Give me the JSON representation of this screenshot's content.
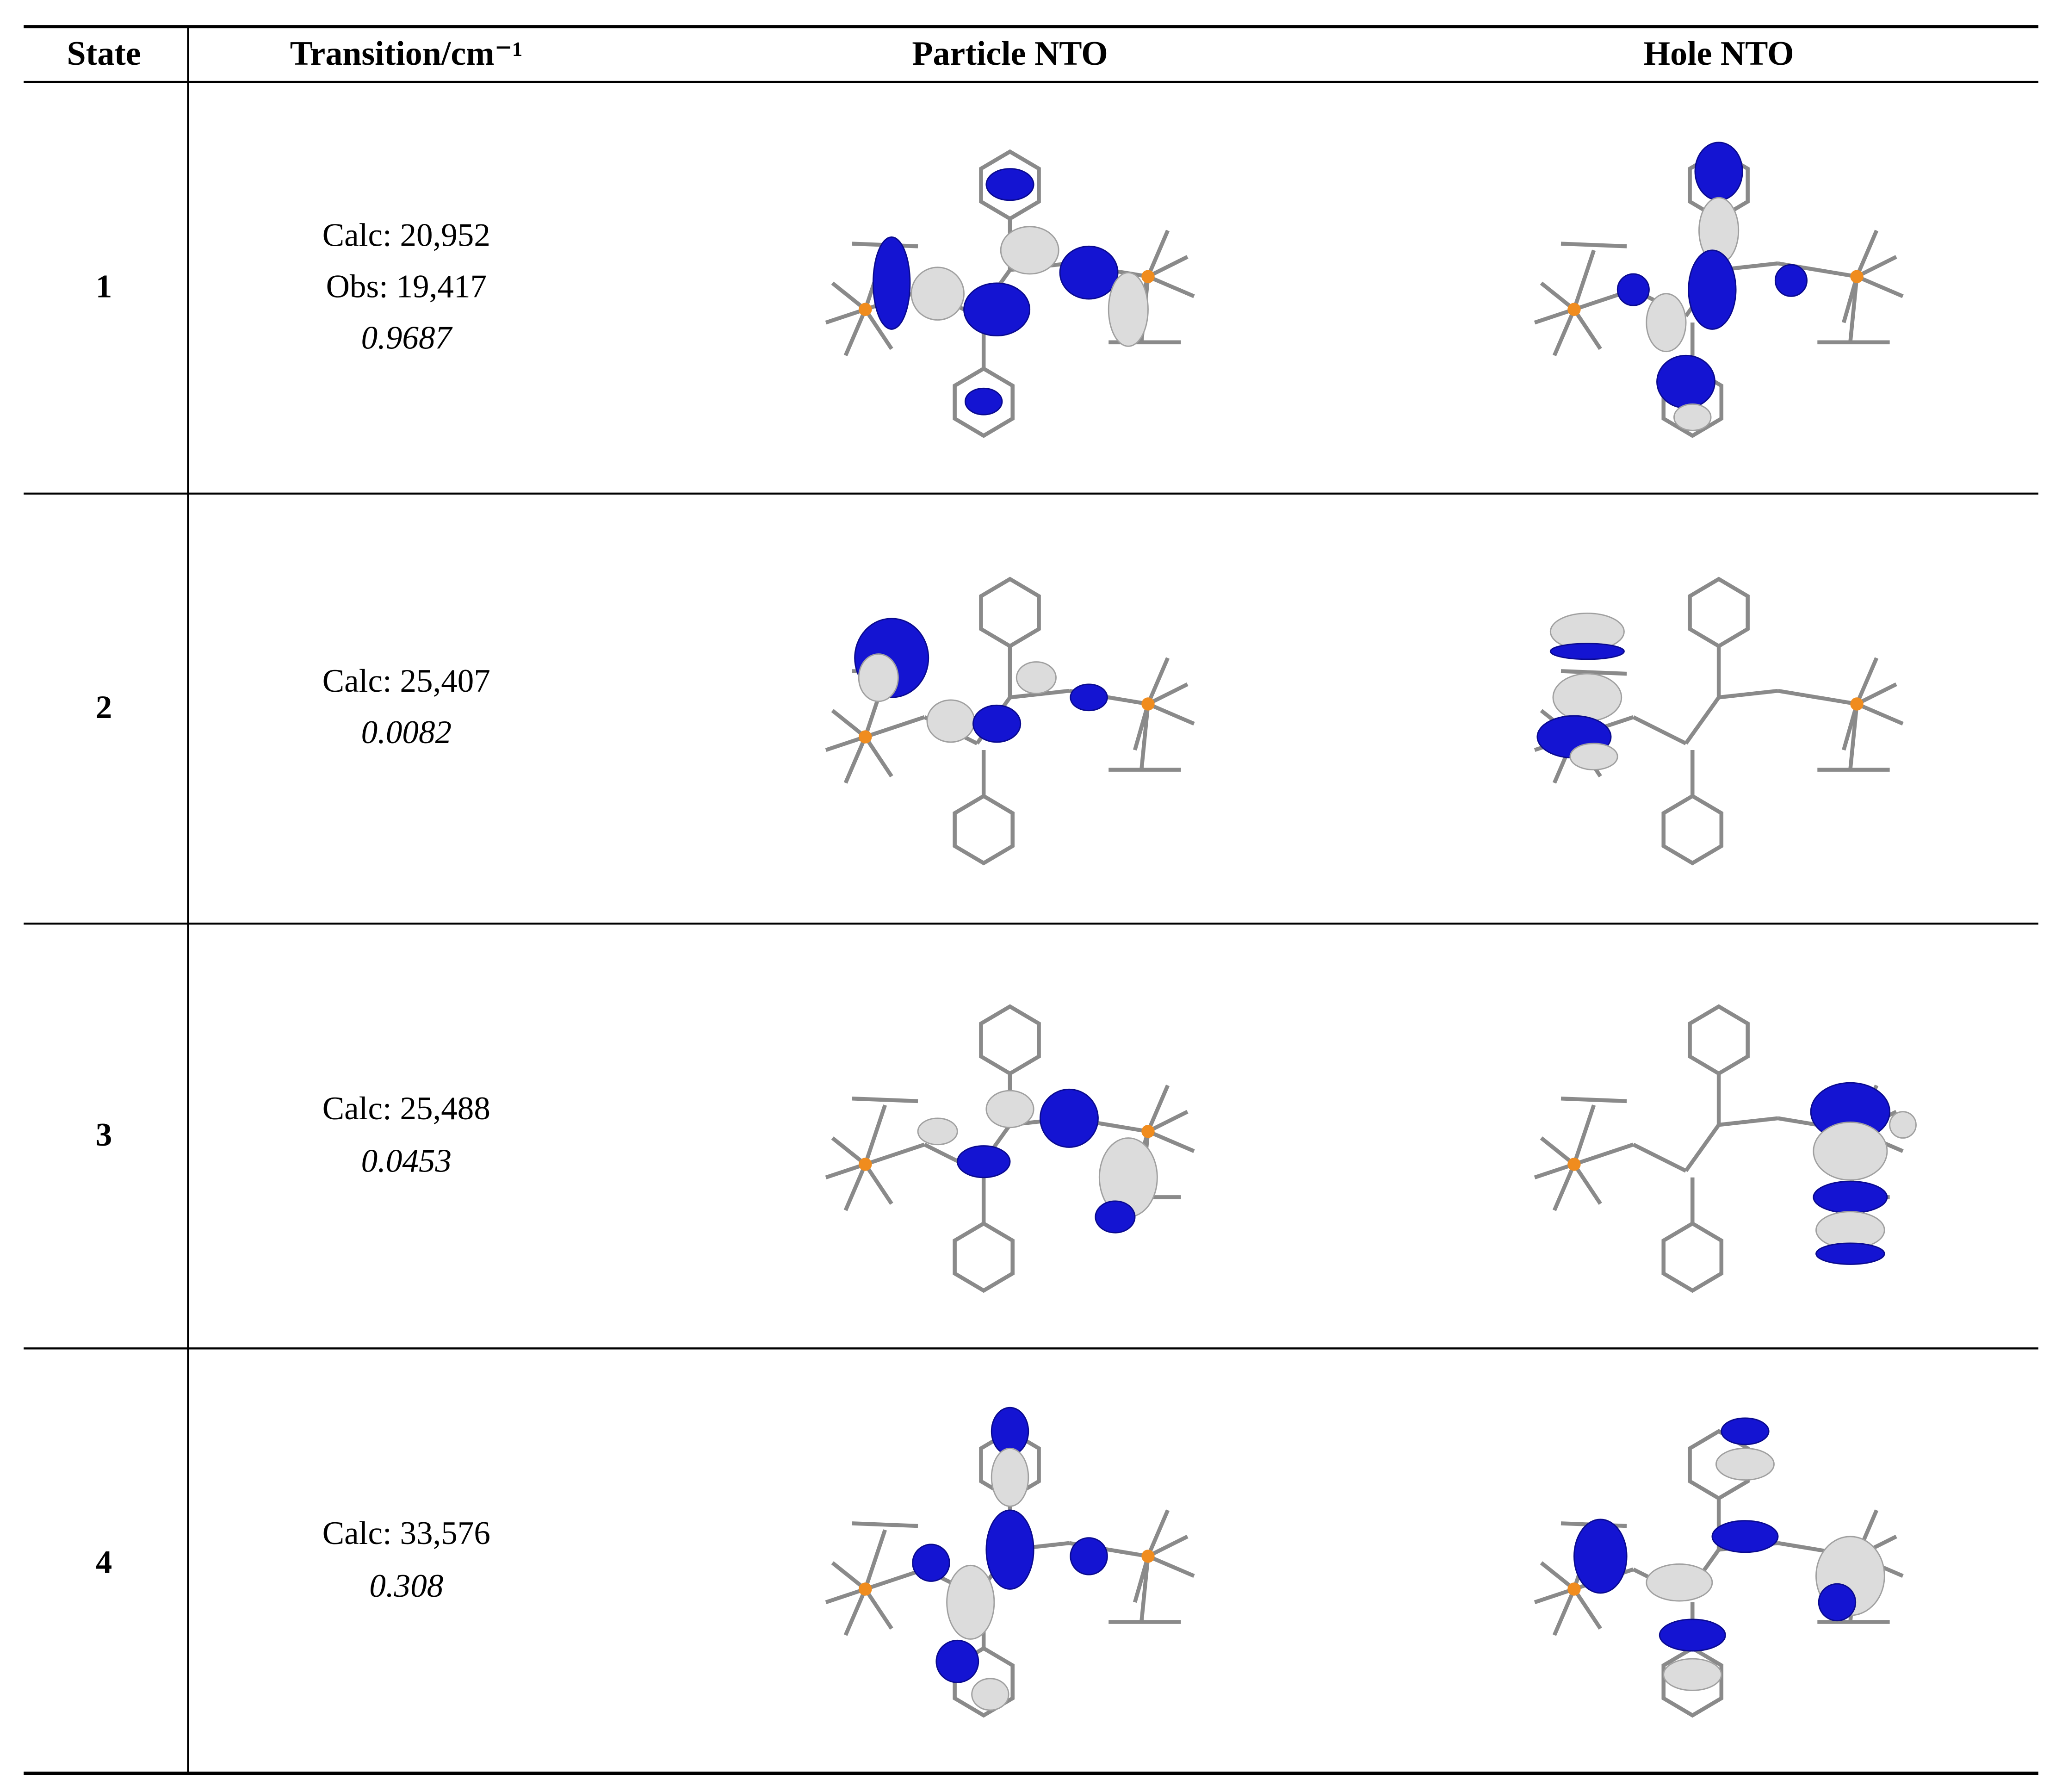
{
  "table": {
    "header": [
      "State",
      "Transition/cm⁻¹",
      "Particle NTO",
      "Hole NTO"
    ],
    "rows": [
      {
        "state": "1",
        "lines": [
          "Calc: 20,952",
          "Obs: 19,417"
        ],
        "oscillator": "0.9687"
      },
      {
        "state": "2",
        "lines": [
          "Calc: 25,407"
        ],
        "oscillator": "0.0082"
      },
      {
        "state": "3",
        "lines": [
          "Calc: 25,488"
        ],
        "oscillator": "0.0453"
      },
      {
        "state": "4",
        "lines": [
          "Calc: 33,576"
        ],
        "oscillator": "0.308"
      }
    ]
  }
}
